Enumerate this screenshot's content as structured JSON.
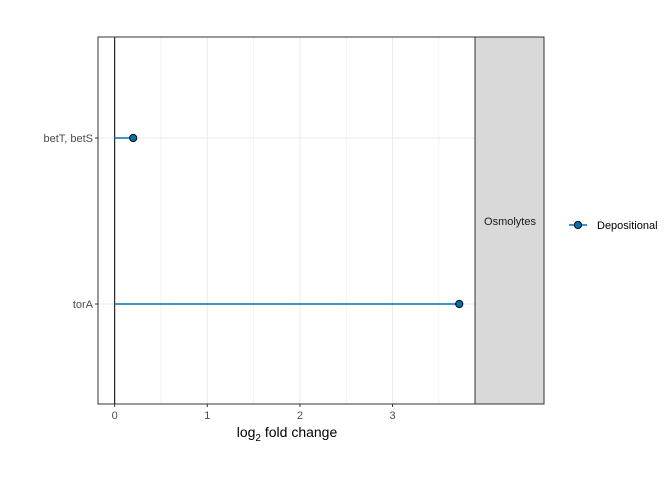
{
  "chart_data": {
    "type": "lollipop",
    "title": "",
    "xlabel_main": "log",
    "xlabel_sub": "2",
    "xlabel_rest": " fold change",
    "ylabel": "",
    "xlim": [
      -0.18,
      3.89
    ],
    "xticks": [
      0,
      1,
      2,
      3
    ],
    "x_minor_ticks": [
      0.5,
      1.5,
      2.5,
      3.5
    ],
    "categories": [
      "betT, betS",
      "torA"
    ],
    "facet_label": "Osmolytes",
    "series": [
      {
        "name": "Depositional",
        "values": [
          0.2,
          3.72
        ]
      }
    ],
    "colors": {
      "series": "#0072b2",
      "point_fill": "#0072b2",
      "point_stroke": "#000000",
      "strip_fill": "#d9d9d9",
      "grid": "#ebebeb",
      "border": "#333333"
    },
    "grid": true,
    "legend_position": "right"
  }
}
